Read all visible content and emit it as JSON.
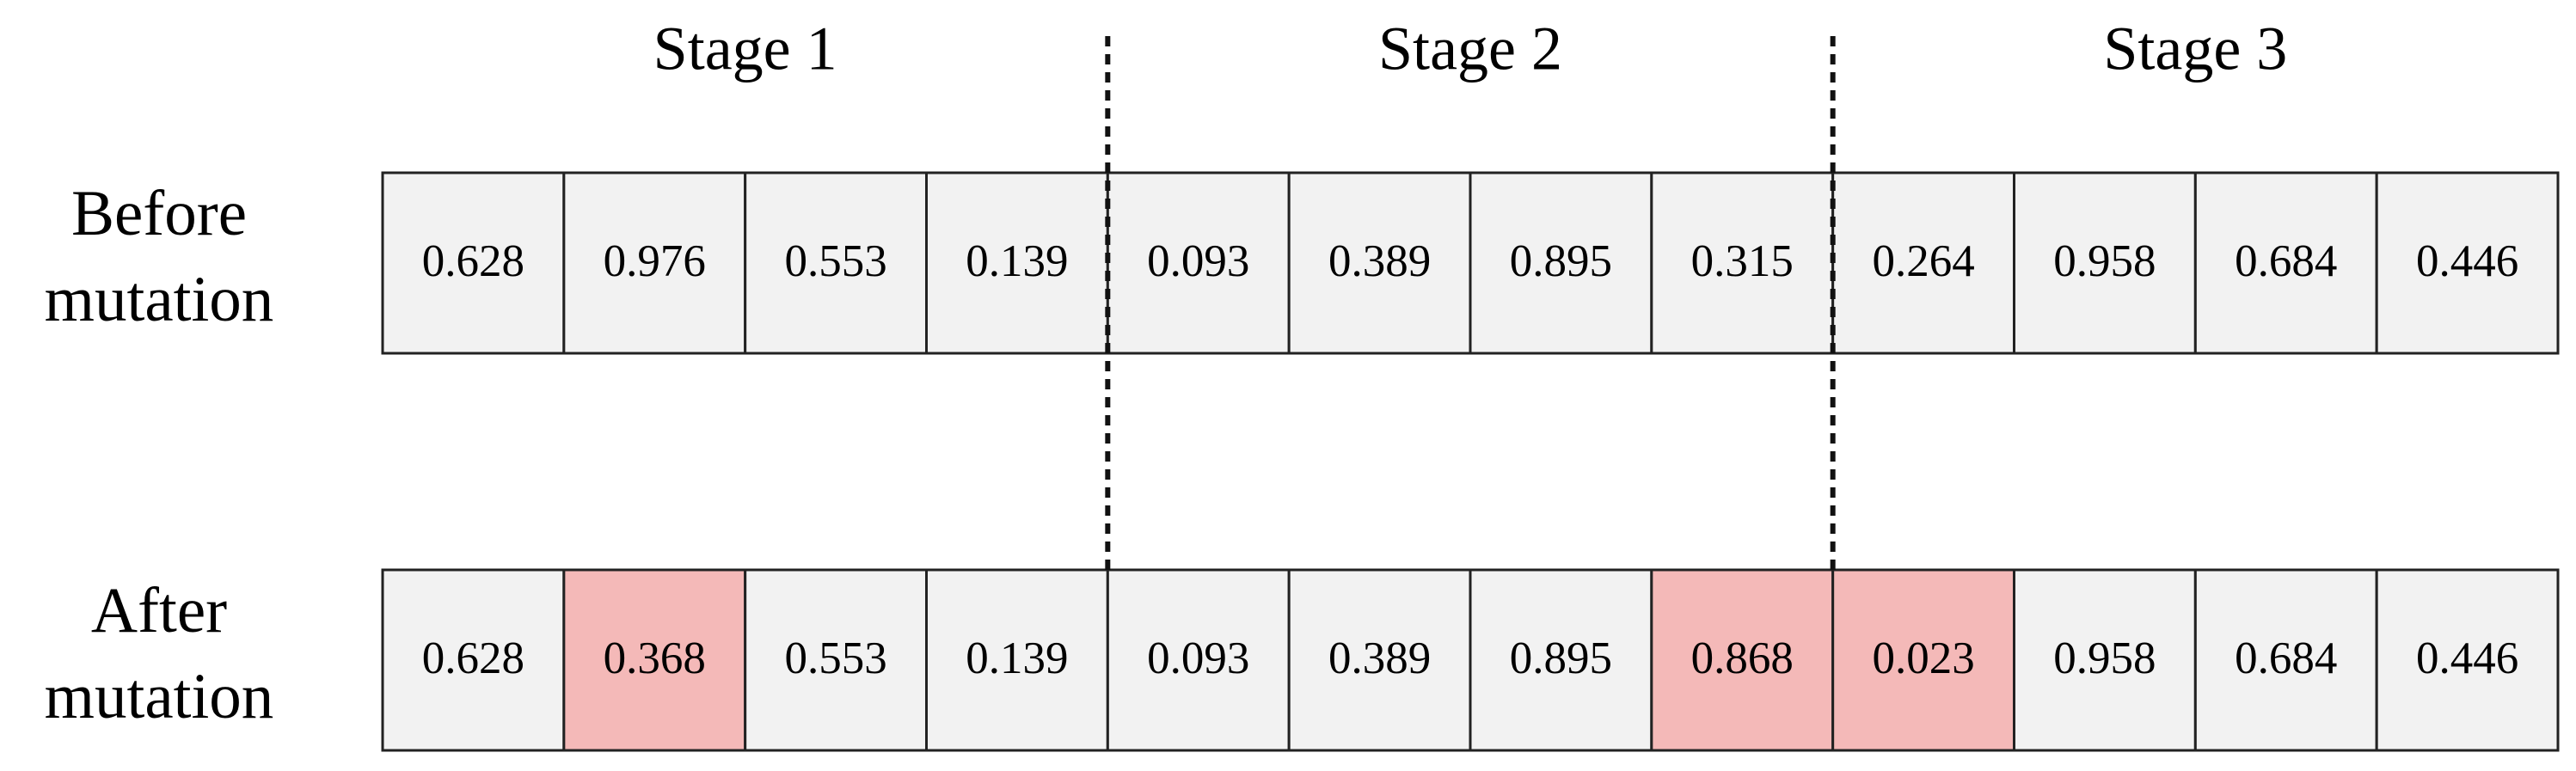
{
  "stages": [
    "Stage 1",
    "Stage 2",
    "Stage 3"
  ],
  "rows": [
    {
      "label": [
        "Before",
        "mutation"
      ],
      "cells": [
        {
          "text": "0.628",
          "color": "#f2f2f2"
        },
        {
          "text": "0.976",
          "color": "#f2f2f2"
        },
        {
          "text": "0.553",
          "color": "#f2f2f2"
        },
        {
          "text": "0.139",
          "color": "#f2f2f2"
        },
        {
          "text": "0.093",
          "color": "#f2f2f2"
        },
        {
          "text": "0.389",
          "color": "#f2f2f2"
        },
        {
          "text": "0.895",
          "color": "#f2f2f2"
        },
        {
          "text": "0.315",
          "color": "#f2f2f2"
        },
        {
          "text": "0.264",
          "color": "#f2f2f2"
        },
        {
          "text": "0.958",
          "color": "#f2f2f2"
        },
        {
          "text": "0.684",
          "color": "#f2f2f2"
        },
        {
          "text": "0.446",
          "color": "#f2f2f2"
        }
      ]
    },
    {
      "label": [
        "After",
        "mutation"
      ],
      "cells": [
        {
          "text": "0.628",
          "color": "#f2f2f2"
        },
        {
          "text": "0.368",
          "color": "#f4b9b8"
        },
        {
          "text": "0.553",
          "color": "#f2f2f2"
        },
        {
          "text": "0.139",
          "color": "#f2f2f2"
        },
        {
          "text": "0.093",
          "color": "#f2f2f2"
        },
        {
          "text": "0.389",
          "color": "#f2f2f2"
        },
        {
          "text": "0.895",
          "color": "#f2f2f2"
        },
        {
          "text": "0.868",
          "color": "#f4b9b8"
        },
        {
          "text": "0.023",
          "color": "#f4b9b8"
        },
        {
          "text": "0.958",
          "color": "#f2f2f2"
        },
        {
          "text": "0.684",
          "color": "#f2f2f2"
        },
        {
          "text": "0.446",
          "color": "#f2f2f2"
        }
      ]
    }
  ]
}
